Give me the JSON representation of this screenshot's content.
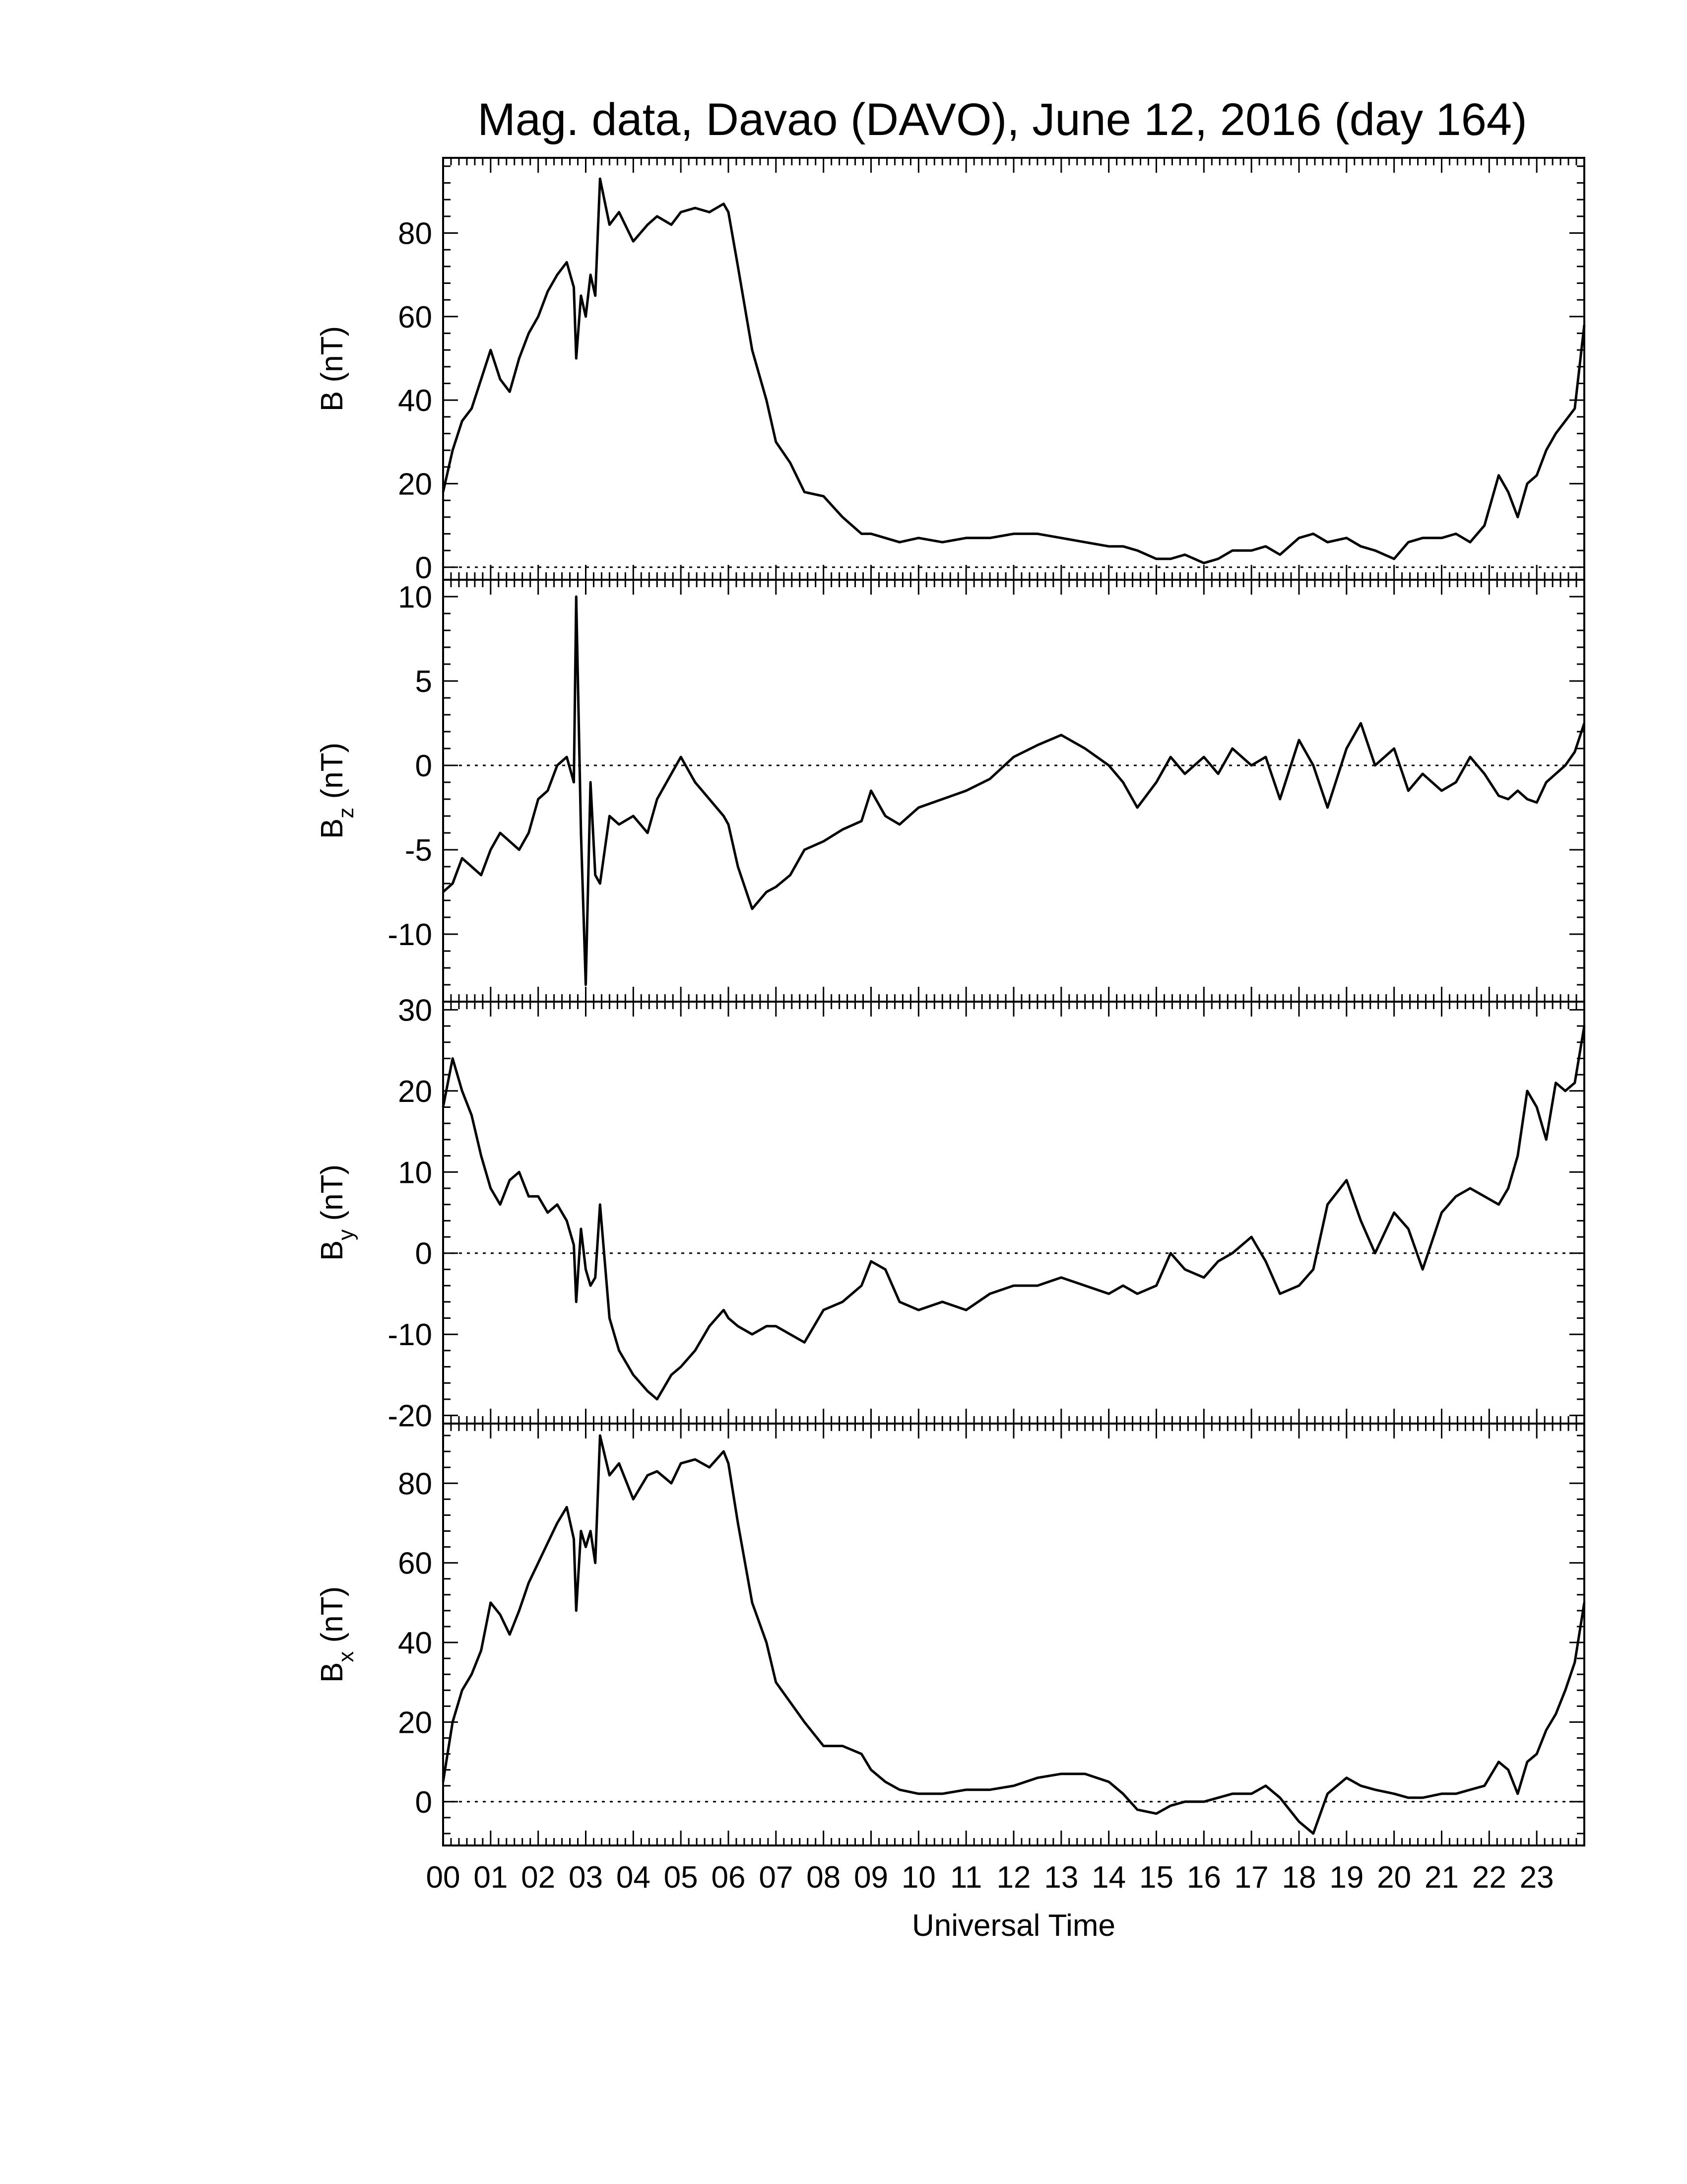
{
  "title": "Mag. data, Davao (DAVO), June 12, 2016 (day 164)",
  "xlabel": "Universal Time",
  "line_color": "#000000",
  "chart_data": [
    {
      "type": "line",
      "panel": "B",
      "ylabel": "B (nT)",
      "ylabel_main": "B",
      "ylabel_sub": "",
      "ylabel_unit": " (nT)",
      "ylim": [
        -3,
        98
      ],
      "yticks": [
        0,
        20,
        40,
        60,
        80
      ],
      "zero_line": true,
      "x": [
        0,
        0.2,
        0.4,
        0.6,
        0.8,
        1.0,
        1.2,
        1.4,
        1.6,
        1.8,
        2.0,
        2.2,
        2.4,
        2.6,
        2.75,
        2.8,
        2.9,
        3.0,
        3.1,
        3.2,
        3.3,
        3.5,
        3.7,
        4.0,
        4.3,
        4.5,
        4.8,
        5.0,
        5.3,
        5.6,
        5.9,
        6.0,
        6.2,
        6.5,
        6.8,
        7.0,
        7.3,
        7.6,
        8.0,
        8.4,
        8.8,
        9.0,
        9.3,
        9.6,
        10.0,
        10.5,
        11.0,
        11.5,
        12.0,
        12.5,
        13.0,
        13.5,
        14.0,
        14.3,
        14.6,
        15.0,
        15.3,
        15.6,
        16.0,
        16.3,
        16.6,
        17.0,
        17.3,
        17.6,
        18.0,
        18.3,
        18.6,
        19.0,
        19.3,
        19.6,
        20.0,
        20.3,
        20.6,
        21.0,
        21.3,
        21.6,
        21.9,
        22.2,
        22.4,
        22.6,
        22.8,
        23.0,
        23.2,
        23.4,
        23.6,
        23.8,
        24.0
      ],
      "y": [
        18,
        28,
        35,
        38,
        45,
        52,
        45,
        42,
        50,
        56,
        60,
        66,
        70,
        73,
        67,
        50,
        65,
        60,
        70,
        65,
        93,
        82,
        85,
        78,
        82,
        84,
        82,
        85,
        86,
        85,
        87,
        85,
        72,
        52,
        40,
        30,
        25,
        18,
        17,
        12,
        8,
        8,
        7,
        6,
        7,
        6,
        7,
        7,
        8,
        8,
        7,
        6,
        5,
        5,
        4,
        2,
        2,
        3,
        1,
        2,
        4,
        4,
        5,
        3,
        7,
        8,
        6,
        7,
        5,
        4,
        2,
        6,
        7,
        7,
        8,
        6,
        10,
        22,
        18,
        12,
        20,
        22,
        28,
        32,
        35,
        38,
        58
      ]
    },
    {
      "type": "line",
      "panel": "Bz",
      "ylabel": "Bz (nT)",
      "ylabel_main": "B",
      "ylabel_sub": "z",
      "ylabel_unit": " (nT)",
      "ylim": [
        -14,
        11
      ],
      "yticks": [
        -10,
        -5,
        0,
        5,
        10
      ],
      "zero_line": true,
      "x": [
        0,
        0.2,
        0.4,
        0.6,
        0.8,
        1.0,
        1.2,
        1.4,
        1.6,
        1.8,
        2.0,
        2.2,
        2.4,
        2.6,
        2.75,
        2.8,
        2.9,
        3.0,
        3.1,
        3.2,
        3.3,
        3.5,
        3.7,
        4.0,
        4.3,
        4.5,
        4.8,
        5.0,
        5.3,
        5.6,
        5.9,
        6.0,
        6.2,
        6.5,
        6.8,
        7.0,
        7.3,
        7.6,
        8.0,
        8.4,
        8.8,
        9.0,
        9.3,
        9.6,
        10.0,
        10.5,
        11.0,
        11.5,
        12.0,
        12.5,
        13.0,
        13.5,
        14.0,
        14.3,
        14.6,
        15.0,
        15.3,
        15.6,
        16.0,
        16.3,
        16.6,
        17.0,
        17.3,
        17.6,
        18.0,
        18.3,
        18.6,
        19.0,
        19.3,
        19.6,
        20.0,
        20.3,
        20.6,
        21.0,
        21.3,
        21.6,
        21.9,
        22.2,
        22.4,
        22.6,
        22.8,
        23.0,
        23.2,
        23.4,
        23.6,
        23.8,
        24.0
      ],
      "y": [
        -7.5,
        -7,
        -5.5,
        -6,
        -6.5,
        -5,
        -4,
        -4.5,
        -5,
        -4,
        -2,
        -1.5,
        0,
        0.5,
        -1,
        10,
        -4,
        -13,
        -1,
        -6.5,
        -7,
        -3,
        -3.5,
        -3,
        -4,
        -2,
        -0.5,
        0.5,
        -1,
        -2,
        -3,
        -3.5,
        -6,
        -8.5,
        -7.5,
        -7.2,
        -6.5,
        -5,
        -4.5,
        -3.8,
        -3.3,
        -1.5,
        -3,
        -3.5,
        -2.5,
        -2,
        -1.5,
        -0.8,
        0.5,
        1.2,
        1.8,
        1,
        0,
        -1,
        -2.5,
        -1,
        0.5,
        -0.5,
        0.5,
        -0.5,
        1,
        0,
        0.5,
        -2,
        1.5,
        0,
        -2.5,
        1,
        2.5,
        0,
        1,
        -1.5,
        -0.5,
        -1.5,
        -1,
        0.5,
        -0.5,
        -1.8,
        -2,
        -1.5,
        -2,
        -2.2,
        -1,
        -0.5,
        0,
        0.8,
        2.5
      ]
    },
    {
      "type": "line",
      "panel": "By",
      "ylabel": "By (nT)",
      "ylabel_main": "B",
      "ylabel_sub": "y",
      "ylabel_unit": " (nT)",
      "ylim": [
        -21,
        31
      ],
      "yticks": [
        -20,
        -10,
        0,
        10,
        20,
        30
      ],
      "zero_line": true,
      "x": [
        0,
        0.2,
        0.4,
        0.6,
        0.8,
        1.0,
        1.2,
        1.4,
        1.6,
        1.8,
        2.0,
        2.2,
        2.4,
        2.6,
        2.75,
        2.8,
        2.9,
        3.0,
        3.1,
        3.2,
        3.3,
        3.5,
        3.7,
        4.0,
        4.3,
        4.5,
        4.8,
        5.0,
        5.3,
        5.6,
        5.9,
        6.0,
        6.2,
        6.5,
        6.8,
        7.0,
        7.3,
        7.6,
        8.0,
        8.4,
        8.8,
        9.0,
        9.3,
        9.6,
        10.0,
        10.5,
        11.0,
        11.5,
        12.0,
        12.5,
        13.0,
        13.5,
        14.0,
        14.3,
        14.6,
        15.0,
        15.3,
        15.6,
        16.0,
        16.3,
        16.6,
        17.0,
        17.3,
        17.6,
        18.0,
        18.3,
        18.6,
        19.0,
        19.3,
        19.6,
        20.0,
        20.3,
        20.6,
        21.0,
        21.3,
        21.6,
        21.9,
        22.2,
        22.4,
        22.6,
        22.8,
        23.0,
        23.2,
        23.4,
        23.6,
        23.8,
        24.0
      ],
      "y": [
        18,
        24,
        20,
        17,
        12,
        8,
        6,
        9,
        10,
        7,
        7,
        5,
        6,
        4,
        1,
        -6,
        3,
        -2,
        -4,
        -3,
        6,
        -8,
        -12,
        -15,
        -17,
        -18,
        -15,
        -14,
        -12,
        -9,
        -7,
        -8,
        -9,
        -10,
        -9,
        -9,
        -10,
        -11,
        -7,
        -6,
        -4,
        -1,
        -2,
        -6,
        -7,
        -6,
        -7,
        -5,
        -4,
        -4,
        -3,
        -4,
        -5,
        -4,
        -5,
        -4,
        0,
        -2,
        -3,
        -1,
        0,
        2,
        -1,
        -5,
        -4,
        -2,
        6,
        9,
        4,
        0,
        5,
        3,
        -2,
        5,
        7,
        8,
        7,
        6,
        8,
        12,
        20,
        18,
        14,
        21,
        20,
        21,
        28
      ]
    },
    {
      "type": "line",
      "panel": "Bx",
      "ylabel": "Bx (nT)",
      "ylabel_main": "B",
      "ylabel_sub": "x",
      "ylabel_unit": " (nT)",
      "ylim": [
        -11,
        95
      ],
      "yticks": [
        0,
        20,
        40,
        60,
        80
      ],
      "zero_line": true,
      "x": [
        0,
        0.2,
        0.4,
        0.6,
        0.8,
        1.0,
        1.2,
        1.4,
        1.6,
        1.8,
        2.0,
        2.2,
        2.4,
        2.6,
        2.75,
        2.8,
        2.9,
        3.0,
        3.1,
        3.2,
        3.3,
        3.5,
        3.7,
        4.0,
        4.3,
        4.5,
        4.8,
        5.0,
        5.3,
        5.6,
        5.9,
        6.0,
        6.2,
        6.5,
        6.8,
        7.0,
        7.3,
        7.6,
        8.0,
        8.4,
        8.8,
        9.0,
        9.3,
        9.6,
        10.0,
        10.5,
        11.0,
        11.5,
        12.0,
        12.5,
        13.0,
        13.5,
        14.0,
        14.3,
        14.6,
        15.0,
        15.3,
        15.6,
        16.0,
        16.3,
        16.6,
        17.0,
        17.3,
        17.6,
        18.0,
        18.3,
        18.6,
        19.0,
        19.3,
        19.6,
        20.0,
        20.3,
        20.6,
        21.0,
        21.3,
        21.6,
        21.9,
        22.2,
        22.4,
        22.6,
        22.8,
        23.0,
        23.2,
        23.4,
        23.6,
        23.8,
        24.0
      ],
      "y": [
        5,
        20,
        28,
        32,
        38,
        50,
        47,
        42,
        48,
        55,
        60,
        65,
        70,
        74,
        66,
        48,
        68,
        64,
        68,
        60,
        92,
        82,
        85,
        76,
        82,
        83,
        80,
        85,
        86,
        84,
        88,
        85,
        70,
        50,
        40,
        30,
        25,
        20,
        14,
        14,
        12,
        8,
        5,
        3,
        2,
        2,
        3,
        3,
        4,
        6,
        7,
        7,
        5,
        2,
        -2,
        -3,
        -1,
        0,
        0,
        1,
        2,
        2,
        4,
        1,
        -5,
        -8,
        2,
        6,
        4,
        3,
        2,
        1,
        1,
        2,
        2,
        3,
        4,
        10,
        8,
        2,
        10,
        12,
        18,
        22,
        28,
        35,
        50
      ]
    }
  ],
  "x_axis": {
    "range": [
      0,
      24
    ],
    "tick_labels": [
      "00",
      "01",
      "02",
      "03",
      "04",
      "05",
      "06",
      "07",
      "08",
      "09",
      "10",
      "11",
      "12",
      "13",
      "14",
      "15",
      "16",
      "17",
      "18",
      "19",
      "20",
      "21",
      "22",
      "23"
    ]
  }
}
